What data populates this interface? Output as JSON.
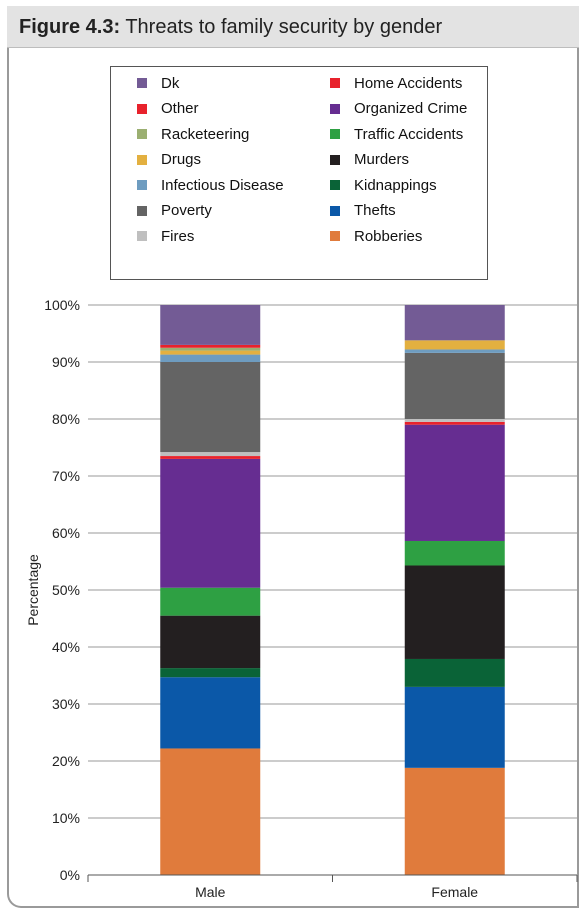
{
  "figure": {
    "label": "Figure 4.3:",
    "title": "Threats to family security by gender"
  },
  "chart_data": {
    "type": "bar",
    "stacked": true,
    "categories": [
      "Male",
      "Female"
    ],
    "ylabel": "Percentage",
    "ylim": [
      0,
      100
    ],
    "yticks": [
      "0%",
      "10%",
      "20%",
      "30%",
      "40%",
      "50%",
      "60%",
      "70%",
      "80%",
      "90%",
      "100%"
    ],
    "grid": true,
    "series": [
      {
        "name": "Robberies",
        "color": "#e07b3c",
        "values": [
          22.2,
          18.8
        ]
      },
      {
        "name": "Thefts",
        "color": "#0b58a8",
        "values": [
          12.5,
          14.2
        ]
      },
      {
        "name": "Kidnappings",
        "color": "#0a6337",
        "values": [
          1.6,
          4.9
        ]
      },
      {
        "name": "Murders",
        "color": "#231f20",
        "values": [
          9.2,
          16.4
        ]
      },
      {
        "name": "Traffic Accidents",
        "color": "#2ea043",
        "values": [
          4.9,
          4.3
        ]
      },
      {
        "name": "Organized Crime",
        "color": "#662d91",
        "values": [
          22.6,
          20.4
        ]
      },
      {
        "name": "Home Accidents",
        "color": "#e8222c",
        "values": [
          0.5,
          0.5
        ]
      },
      {
        "name": "Fires",
        "color": "#bfbfbf",
        "values": [
          0.7,
          0.5
        ]
      },
      {
        "name": "Poverty",
        "color": "#646464",
        "values": [
          15.8,
          11.6
        ]
      },
      {
        "name": "Infectious Disease",
        "color": "#6e9cc0",
        "values": [
          1.3,
          0.6
        ]
      },
      {
        "name": "Drugs",
        "color": "#e3b040",
        "values": [
          0.7,
          1.6
        ]
      },
      {
        "name": "Racketeering",
        "color": "#9baf71",
        "values": [
          0.5,
          0.0
        ]
      },
      {
        "name": "Other",
        "color": "#e8222c",
        "values": [
          0.5,
          0.0
        ]
      },
      {
        "name": "Dk",
        "color": "#735b95",
        "values": [
          7.0,
          6.2
        ]
      }
    ],
    "legend": {
      "left_column": [
        "Dk",
        "Other",
        "Racketeering",
        "Drugs",
        "Infectious Disease",
        "Poverty",
        "Fires"
      ],
      "right_column": [
        "Home Accidents",
        "Organized Crime",
        "Traffic Accidents",
        "Murders",
        "Kidnappings",
        "Thefts",
        "Robberies"
      ]
    }
  }
}
